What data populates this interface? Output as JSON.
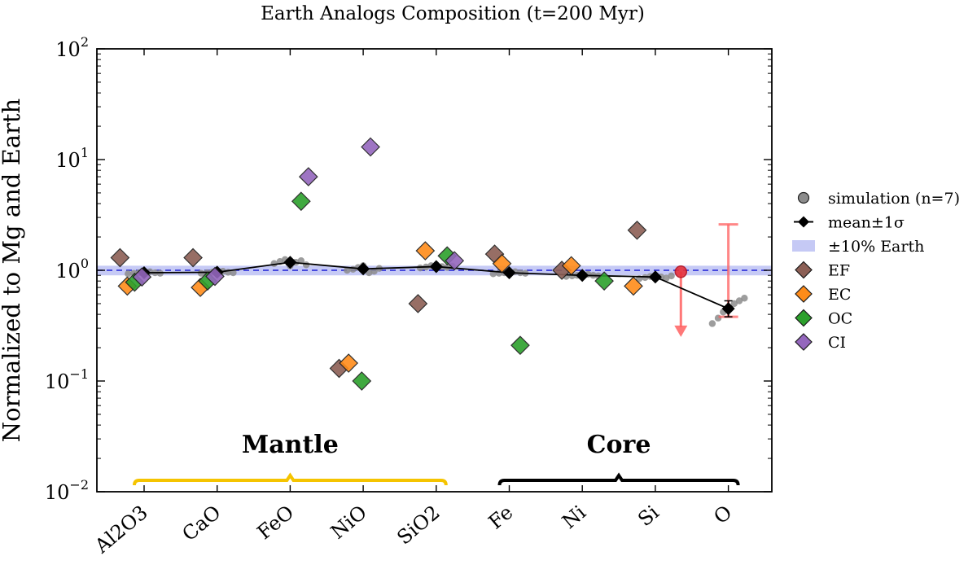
{
  "chart_data": {
    "type": "scatter",
    "title": "Earth Analogs Composition (t=200 Myr)",
    "ylabel": "Normalized to Mg and Earth",
    "yscale": "log",
    "ylim": [
      0.01,
      100
    ],
    "yticks": [
      {
        "value": 100,
        "base": "10",
        "exp": "2"
      },
      {
        "value": 10,
        "base": "10",
        "exp": "1"
      },
      {
        "value": 1,
        "label": "10",
        "exp": "0"
      },
      {
        "value": 0.1,
        "base": "10",
        "exp": "−1"
      },
      {
        "value": 0.01,
        "base": "10",
        "exp": "−2"
      }
    ],
    "categories": [
      "Al2O3",
      "CaO",
      "FeO",
      "NiO",
      "SiO2",
      "Fe",
      "Ni",
      "Si",
      "O"
    ],
    "groups": [
      {
        "label": "Mantle",
        "from": 0,
        "to": 4,
        "color": "#f5c400"
      },
      {
        "label": "Core",
        "from": 5,
        "to": 8,
        "color": "#000000"
      }
    ],
    "reference_band": {
      "center": 1.0,
      "lower": 0.9,
      "upper": 1.1,
      "color": "#b3b8f2",
      "line_color": "#1f1fd6"
    },
    "mean": {
      "name": "mean±1σ",
      "values": [
        0.95,
        0.96,
        1.18,
        1.03,
        1.08,
        0.95,
        0.9,
        0.87,
        0.45
      ],
      "err_low": [
        0.02,
        0.02,
        0.06,
        0.04,
        0.03,
        0.02,
        0.02,
        0.03,
        0.07
      ],
      "err_high": [
        0.02,
        0.02,
        0.06,
        0.04,
        0.03,
        0.02,
        0.02,
        0.03,
        0.08
      ],
      "color": "#000000"
    },
    "simulation": {
      "name": "simulation (n=7)",
      "color": "#8c8c8c",
      "values": [
        [
          0.93,
          0.94,
          0.95,
          0.96,
          0.97,
          0.95,
          0.94
        ],
        [
          0.94,
          0.95,
          0.96,
          0.97,
          0.98,
          0.96,
          0.95
        ],
        [
          1.15,
          1.2,
          1.25,
          1.1,
          1.18,
          1.22,
          1.12
        ],
        [
          1.0,
          1.02,
          1.06,
          1.1,
          0.95,
          0.98,
          1.04
        ],
        [
          1.05,
          1.07,
          1.1,
          1.12,
          1.08,
          1.06,
          1.09
        ],
        [
          0.93,
          0.94,
          0.95,
          0.96,
          0.97,
          0.95,
          0.94
        ],
        [
          0.88,
          0.89,
          0.9,
          0.91,
          0.92,
          0.9,
          0.89
        ],
        [
          0.84,
          0.86,
          0.88,
          0.9,
          0.87,
          0.85,
          0.89
        ],
        [
          0.33,
          0.37,
          0.42,
          0.46,
          0.5,
          0.53,
          0.56
        ]
      ]
    },
    "meteorites": [
      {
        "name": "EF",
        "color": "#8c5f55",
        "values": [
          1.3,
          1.3,
          null,
          0.13,
          0.5,
          1.4,
          1.0,
          2.3,
          null
        ]
      },
      {
        "name": "EC",
        "color": "#ff8c1a",
        "values": [
          0.72,
          0.7,
          null,
          0.145,
          1.5,
          1.15,
          1.1,
          0.72,
          null
        ]
      },
      {
        "name": "OC",
        "color": "#2ca02c",
        "values": [
          0.78,
          0.8,
          4.2,
          0.1,
          1.35,
          0.21,
          0.8,
          null,
          null
        ]
      },
      {
        "name": "CI",
        "color": "#9467bd",
        "values": [
          0.87,
          0.88,
          7.0,
          13.0,
          1.22,
          null,
          null,
          null,
          null
        ]
      }
    ],
    "upper_limit": {
      "category_index": 7.35,
      "value": 0.97,
      "arrow_to": 0.25,
      "color": "#ff6060"
    },
    "highlight_error": {
      "category_index": 8,
      "value": 0.45,
      "low": 0.38,
      "high": 2.6,
      "color": "#ff6060"
    },
    "legend": {
      "position": "right",
      "items": [
        {
          "label": "simulation (n=7)",
          "kind": "circle",
          "color": "#8c8c8c"
        },
        {
          "label": "mean±1σ",
          "kind": "line-diamond",
          "color": "#000000"
        },
        {
          "label": "±10% Earth",
          "kind": "band",
          "color": "#c5c9f5"
        },
        {
          "label": "EF",
          "kind": "diamond",
          "color": "#8c5f55"
        },
        {
          "label": "EC",
          "kind": "diamond",
          "color": "#ff8c1a"
        },
        {
          "label": "OC",
          "kind": "diamond",
          "color": "#2ca02c"
        },
        {
          "label": "CI",
          "kind": "diamond",
          "color": "#9467bd"
        }
      ]
    }
  }
}
